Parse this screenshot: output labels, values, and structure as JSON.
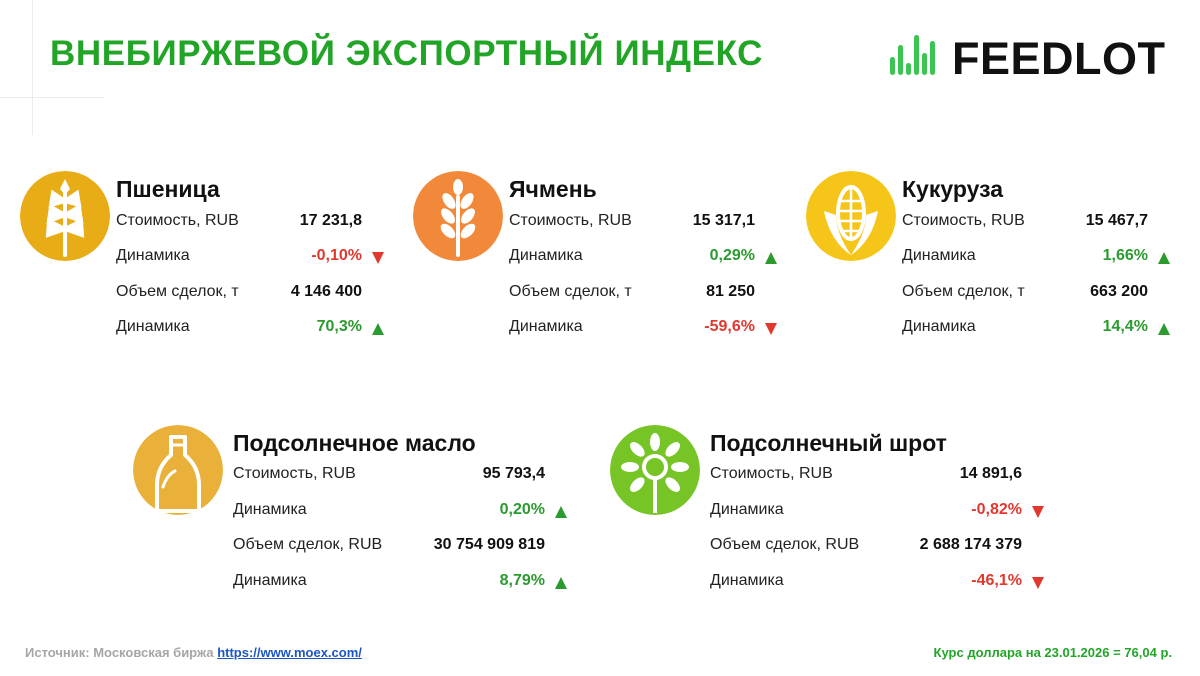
{
  "header": {
    "title": "ВНЕБИРЖЕВОЙ ЭКСПОРТНЫЙ ИНДЕКС",
    "logo_text": "FEEDLOT",
    "logo_icon": "bars-logo-icon",
    "brand_color": "#22a527"
  },
  "colors": {
    "positive": "#2b9a2f",
    "negative": "#e0382e"
  },
  "products": [
    {
      "name": "Пшеница",
      "icon": "wheat-icon",
      "icon_color": "#e8ad16",
      "rows": [
        {
          "label": "Стоимость, RUB",
          "value": "17 231,8"
        },
        {
          "label": "Динамика",
          "value": "-0,10%",
          "trend": "down"
        },
        {
          "label": "Объем сделок, т",
          "value": "4 146 400"
        },
        {
          "label": "Динамика",
          "value": "70,3%",
          "trend": "up"
        }
      ]
    },
    {
      "name": "Ячмень",
      "icon": "barley-icon",
      "icon_color": "#f2893a",
      "rows": [
        {
          "label": "Стоимость, RUB",
          "value": "15 317,1"
        },
        {
          "label": "Динамика",
          "value": "0,29%",
          "trend": "up"
        },
        {
          "label": "Объем сделок, т",
          "value": "81 250"
        },
        {
          "label": "Динамика",
          "value": "-59,6%",
          "trend": "down"
        }
      ]
    },
    {
      "name": "Кукуруза",
      "icon": "corn-icon",
      "icon_color": "#f6c51a",
      "rows": [
        {
          "label": "Стоимость, RUB",
          "value": "15 467,7"
        },
        {
          "label": "Динамика",
          "value": "1,66%",
          "trend": "up"
        },
        {
          "label": "Объем сделок, т",
          "value": "663 200"
        },
        {
          "label": "Динамика",
          "value": "14,4%",
          "trend": "up"
        }
      ]
    },
    {
      "name": "Подсолнечное масло",
      "icon": "oil-bottle-icon",
      "icon_color": "#e9b13a",
      "rows": [
        {
          "label": "Стоимость, RUB",
          "value": "95 793,4"
        },
        {
          "label": "Динамика",
          "value": "0,20%",
          "trend": "up"
        },
        {
          "label": "Объем сделок, RUB",
          "value": "30 754 909 819"
        },
        {
          "label": "Динамика",
          "value": "8,79%",
          "trend": "up"
        }
      ]
    },
    {
      "name": "Подсолнечный шрот",
      "icon": "sunflower-icon",
      "icon_color": "#76c425",
      "rows": [
        {
          "label": "Стоимость, RUB",
          "value": "14 891,6"
        },
        {
          "label": "Динамика",
          "value": "-0,82%",
          "trend": "down"
        },
        {
          "label": "Объем сделок, RUB",
          "value": "2 688 174 379"
        },
        {
          "label": "Динамика",
          "value": "-46,1%",
          "trend": "down"
        }
      ]
    }
  ],
  "footer": {
    "source_label": "Источник: Московская биржа",
    "source_link": "https://www.moex.com/",
    "rate": "Курс доллара на 23.01.2026 = 76,04 р."
  }
}
